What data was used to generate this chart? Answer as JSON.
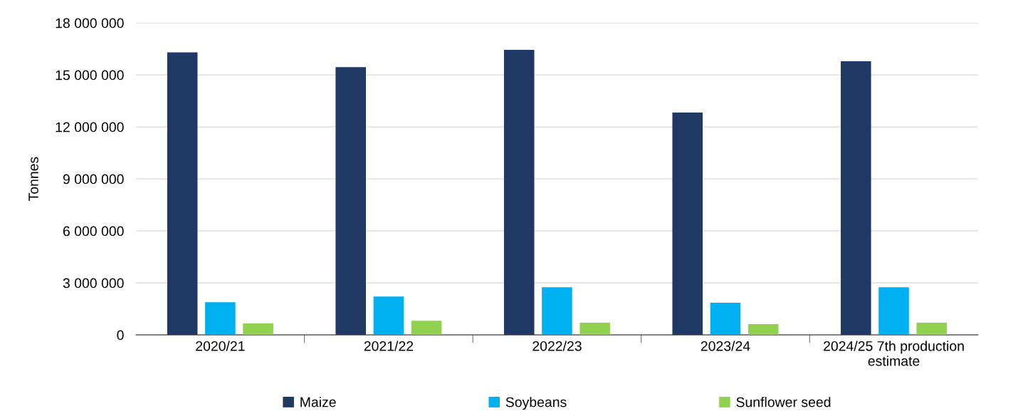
{
  "chart_data": {
    "type": "bar",
    "ylabel": "Tonnes",
    "categories": [
      "2020/21",
      "2021/22",
      "2022/23",
      "2023/24",
      "2024/25 7th production\nestimate"
    ],
    "series": [
      {
        "name": "Maize",
        "color": "#203864",
        "values": [
          16300000,
          15450000,
          16440000,
          12830000,
          15790000
        ]
      },
      {
        "name": "Soybeans",
        "color": "#00b0f0",
        "values": [
          1890000,
          2210000,
          2750000,
          1850000,
          2750000
        ]
      },
      {
        "name": "Sunflower seed",
        "color": "#92d050",
        "values": [
          660000,
          820000,
          700000,
          620000,
          700000
        ]
      }
    ],
    "ylim": [
      0,
      18000000
    ],
    "yticks": [
      {
        "value": 0,
        "label": "0"
      },
      {
        "value": 3000000,
        "label": "3 000 000"
      },
      {
        "value": 6000000,
        "label": "6 000 000"
      },
      {
        "value": 9000000,
        "label": "9 000 000"
      },
      {
        "value": 12000000,
        "label": "12 000 000"
      },
      {
        "value": 15000000,
        "label": "15 000 000"
      },
      {
        "value": 18000000,
        "label": "18 000 000"
      }
    ],
    "grid": "y",
    "legend": "bottom"
  }
}
